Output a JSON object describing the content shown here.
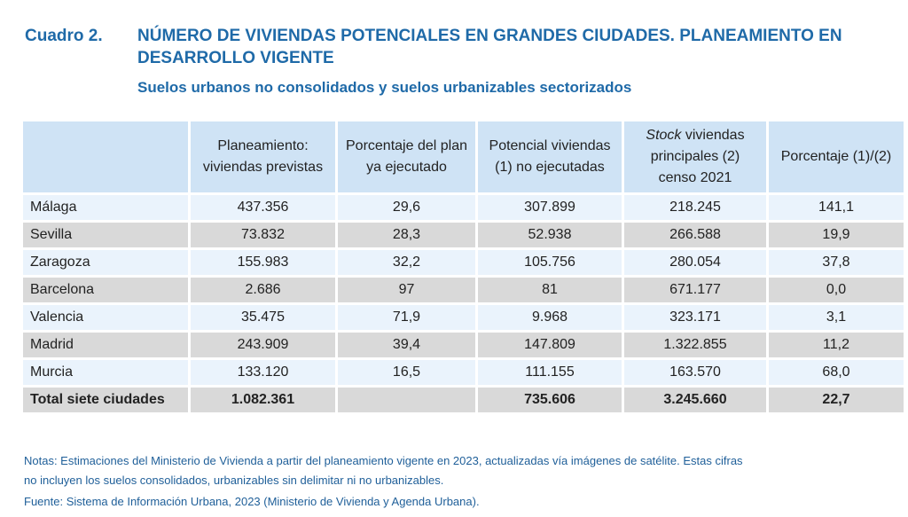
{
  "title": {
    "label": "Cuadro 2.",
    "main": "NÚMERO DE VIVIENDAS POTENCIALES EN GRANDES CIUDADES. PLANEAMIENTO EN DESARROLLO VIGENTE",
    "subtitle": "Suelos urbanos no consolidados y suelos urbanizables sectorizados"
  },
  "table": {
    "headers": [
      "",
      "Planeamiento: viviendas previstas",
      "Porcentaje del plan ya ejecutado",
      "Potencial viviendas (1) no ejecutadas",
      "viviendas principales (2) censo 2021",
      "Porcentaje (1)/(2)"
    ],
    "header_italic_prefix": "Stock",
    "rows": [
      [
        "Málaga",
        "437.356",
        "29,6",
        "307.899",
        "218.245",
        "141,1"
      ],
      [
        "Sevilla",
        "73.832",
        "28,3",
        "52.938",
        "266.588",
        "19,9"
      ],
      [
        "Zaragoza",
        "155.983",
        "32,2",
        "105.756",
        "280.054",
        "37,8"
      ],
      [
        "Barcelona",
        "2.686",
        "97",
        "81",
        "671.177",
        "0,0"
      ],
      [
        "Valencia",
        "35.475",
        "71,9",
        "9.968",
        "323.171",
        "3,1"
      ],
      [
        "Madrid",
        "243.909",
        "39,4",
        "147.809",
        "1.322.855",
        "11,2"
      ],
      [
        "Murcia",
        "133.120",
        "16,5",
        "111.155",
        "163.570",
        "68,0"
      ],
      [
        "Total siete ciudades",
        "1.082.361",
        "",
        "735.606",
        "3.245.660",
        "22,7"
      ]
    ]
  },
  "notes": [
    "Notas: Estimaciones del Ministerio de Vivienda a partir del planeamiento vigente en 2023, actualizadas vía imágenes de satélite. Estas cifras",
    "no incluyen los suelos consolidados, urbanizables sin delimitar ni no urbanizables.",
    "Fuente: Sistema de Información Urbana, 2023 (Ministerio de Vivienda y Agenda Urbana)."
  ],
  "colors": {
    "title": "#1f6aa8",
    "header_bg": "#cfe3f5",
    "row_light": "#eaf3fc",
    "row_gray": "#d9d9d9"
  }
}
